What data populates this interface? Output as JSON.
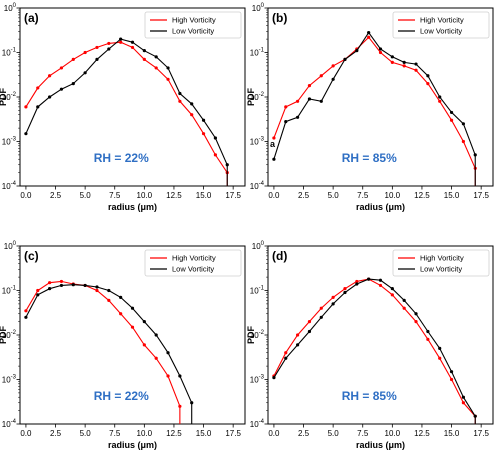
{
  "chart_data": [
    {
      "type": "line",
      "panel_label": "(a)",
      "annotation": "RH = 22%",
      "annotation_color": "#2f6fc4",
      "xlabel": "radius  (μm)",
      "ylabel": "PDF",
      "xlim": [
        -0.5,
        18.5
      ],
      "ylim": [
        0.0001,
        1
      ],
      "yscale": "log",
      "x_ticks": [
        "0.0",
        "2.5",
        "5.0",
        "7.5",
        "10.0",
        "12.5",
        "15.0",
        "17.5"
      ],
      "legend_position": "top-right",
      "series": [
        {
          "name": "High Vorticity",
          "color": "#ff0000",
          "x": [
            0,
            1,
            2,
            3,
            4,
            5,
            6,
            7,
            8,
            9,
            10,
            11,
            12,
            13,
            14,
            15,
            16,
            17
          ],
          "y": [
            0.006,
            0.016,
            0.03,
            0.045,
            0.07,
            0.1,
            0.13,
            0.16,
            0.17,
            0.13,
            0.07,
            0.045,
            0.025,
            0.008,
            0.004,
            0.0015,
            0.0005,
            0.0002
          ]
        },
        {
          "name": "Low Vorticity",
          "color": "#000000",
          "x": [
            0,
            1,
            2,
            3,
            4,
            5,
            6,
            7,
            8,
            9,
            10,
            11,
            12,
            13,
            14,
            15,
            16,
            17
          ],
          "y": [
            0.0015,
            0.006,
            0.01,
            0.015,
            0.02,
            0.035,
            0.07,
            0.12,
            0.2,
            0.17,
            0.11,
            0.08,
            0.045,
            0.012,
            0.007,
            0.003,
            0.0012,
            0.0003
          ]
        }
      ]
    },
    {
      "type": "line",
      "panel_label": "(b)",
      "annotation": "RH = 85%",
      "annotation_color": "#2f6fc4",
      "stray_text": "a",
      "xlabel": "radius  (μm)",
      "ylabel": "PDF",
      "xlim": [
        -0.5,
        18.5
      ],
      "ylim": [
        0.0001,
        1
      ],
      "yscale": "log",
      "x_ticks": [
        "0.0",
        "2.5",
        "5.0",
        "7.5",
        "10.0",
        "12.5",
        "15.0",
        "17.5"
      ],
      "legend_position": "top-right",
      "series": [
        {
          "name": "High Vorticity",
          "color": "#ff0000",
          "x": [
            0,
            1,
            2,
            3,
            4,
            5,
            6,
            7,
            8,
            9,
            10,
            11,
            12,
            13,
            14,
            15,
            16,
            17
          ],
          "y": [
            0.0012,
            0.006,
            0.008,
            0.018,
            0.03,
            0.05,
            0.07,
            0.12,
            0.22,
            0.1,
            0.06,
            0.05,
            0.04,
            0.02,
            0.008,
            0.003,
            0.001,
            0.00025
          ]
        },
        {
          "name": "Low Vorticity",
          "color": "#000000",
          "x": [
            0,
            1,
            2,
            3,
            4,
            5,
            6,
            7,
            8,
            9,
            10,
            11,
            12,
            13,
            14,
            15,
            16,
            17
          ],
          "y": [
            0.0004,
            0.0028,
            0.0035,
            0.009,
            0.008,
            0.025,
            0.07,
            0.11,
            0.28,
            0.12,
            0.08,
            0.06,
            0.055,
            0.03,
            0.01,
            0.0045,
            0.0025,
            0.0005
          ]
        }
      ]
    },
    {
      "type": "line",
      "panel_label": "(c)",
      "annotation": "RH = 22%",
      "annotation_color": "#2f6fc4",
      "xlabel": "radius  (μm)",
      "ylabel": "PDF",
      "xlim": [
        -0.5,
        18.5
      ],
      "ylim": [
        0.0001,
        1
      ],
      "yscale": "log",
      "x_ticks": [
        "0.0",
        "2.5",
        "5.0",
        "7.5",
        "10.0",
        "12.5",
        "15.0",
        "17.5"
      ],
      "legend_position": "top-right",
      "series": [
        {
          "name": "High Vorticity",
          "color": "#ff0000",
          "x": [
            0,
            1,
            2,
            3,
            4,
            5,
            6,
            7,
            8,
            9,
            10,
            11,
            12,
            13
          ],
          "y": [
            0.035,
            0.1,
            0.15,
            0.16,
            0.14,
            0.13,
            0.1,
            0.06,
            0.03,
            0.015,
            0.006,
            0.003,
            0.0012,
            0.00025
          ]
        },
        {
          "name": "Low Vorticity",
          "color": "#000000",
          "x": [
            0,
            1,
            2,
            3,
            4,
            5,
            6,
            7,
            8,
            9,
            10,
            11,
            12,
            13,
            14
          ],
          "y": [
            0.025,
            0.08,
            0.11,
            0.13,
            0.135,
            0.13,
            0.12,
            0.1,
            0.07,
            0.04,
            0.02,
            0.01,
            0.004,
            0.0012,
            0.0003
          ]
        }
      ]
    },
    {
      "type": "line",
      "panel_label": "(d)",
      "annotation": "RH = 85%",
      "annotation_color": "#2f6fc4",
      "xlabel": "radius  (μm)",
      "ylabel": "PDF",
      "xlim": [
        -0.5,
        18.5
      ],
      "ylim": [
        0.0001,
        1
      ],
      "yscale": "log",
      "x_ticks": [
        "0.0",
        "2.5",
        "5.0",
        "7.5",
        "10.0",
        "12.5",
        "15.0",
        "17.5"
      ],
      "legend_position": "top-right",
      "series": [
        {
          "name": "High Vorticity",
          "color": "#ff0000",
          "x": [
            0,
            1,
            2,
            3,
            4,
            5,
            6,
            7,
            8,
            9,
            10,
            11,
            12,
            13,
            14,
            15,
            16,
            17
          ],
          "y": [
            0.0012,
            0.004,
            0.01,
            0.02,
            0.04,
            0.07,
            0.11,
            0.16,
            0.18,
            0.13,
            0.08,
            0.04,
            0.02,
            0.008,
            0.003,
            0.001,
            0.0003,
            0.00015
          ]
        },
        {
          "name": "Low Vorticity",
          "color": "#000000",
          "x": [
            0,
            1,
            2,
            3,
            4,
            5,
            6,
            7,
            8,
            9,
            10,
            11,
            12,
            13,
            14,
            15,
            16,
            17
          ],
          "y": [
            0.0011,
            0.003,
            0.006,
            0.012,
            0.025,
            0.05,
            0.09,
            0.14,
            0.18,
            0.17,
            0.11,
            0.06,
            0.03,
            0.012,
            0.005,
            0.0015,
            0.0004,
            0.00015
          ]
        }
      ]
    }
  ]
}
